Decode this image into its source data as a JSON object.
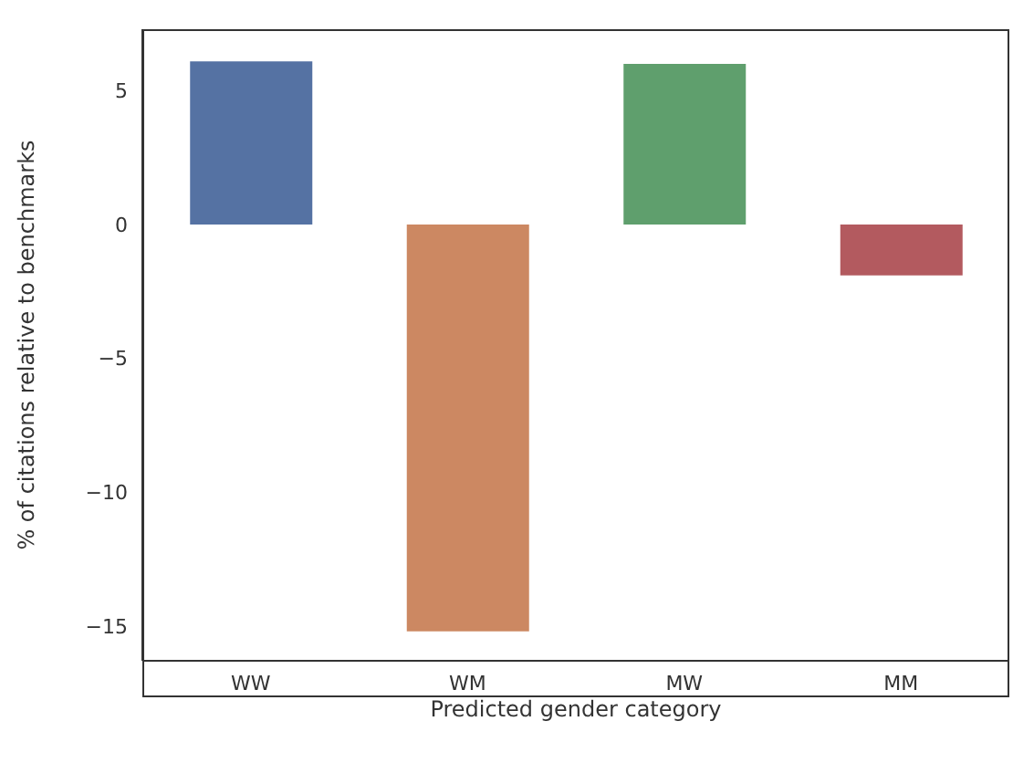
{
  "chart_data": {
    "type": "bar",
    "xlabel": "Predicted gender category",
    "ylabel": "% of citations relative to benchmarks",
    "categories": [
      "WW",
      "WM",
      "MW",
      "MM"
    ],
    "values": [
      6.1,
      -15.2,
      6.0,
      -1.9
    ],
    "colors": [
      "#5572a3",
      "#cc8862",
      "#5f9f6d",
      "#b35a5f"
    ],
    "ylim": [
      -16.3,
      7.3
    ],
    "yticks": [
      {
        "value": 5,
        "label": "5"
      },
      {
        "value": 0,
        "label": "0"
      },
      {
        "value": -5,
        "label": "−5"
      },
      {
        "value": -10,
        "label": "−10"
      },
      {
        "value": -15,
        "label": "−15"
      }
    ],
    "grid": false,
    "legend": false
  }
}
